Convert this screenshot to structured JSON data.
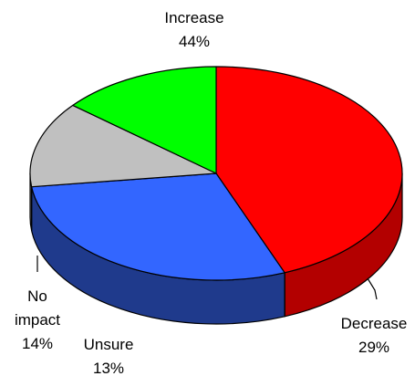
{
  "chart_data": {
    "type": "pie",
    "style": "3d",
    "slices": [
      {
        "label_lines": [
          "Increase",
          "44%"
        ],
        "value": 44,
        "color": "#ff0000",
        "side_color": "#b30000"
      },
      {
        "label_lines": [
          "Decrease",
          "29%"
        ],
        "value": 29,
        "color": "#3366ff",
        "side_color": "#1f3a8c"
      },
      {
        "label_lines": [
          "Unsure",
          "13%"
        ],
        "value": 13,
        "color": "#c0c0c0",
        "side_color": "#6b6b6b"
      },
      {
        "label_lines": [
          "No",
          "impact",
          "14%"
        ],
        "value": 14,
        "color": "#00ff00",
        "side_color": "#008000"
      }
    ]
  }
}
